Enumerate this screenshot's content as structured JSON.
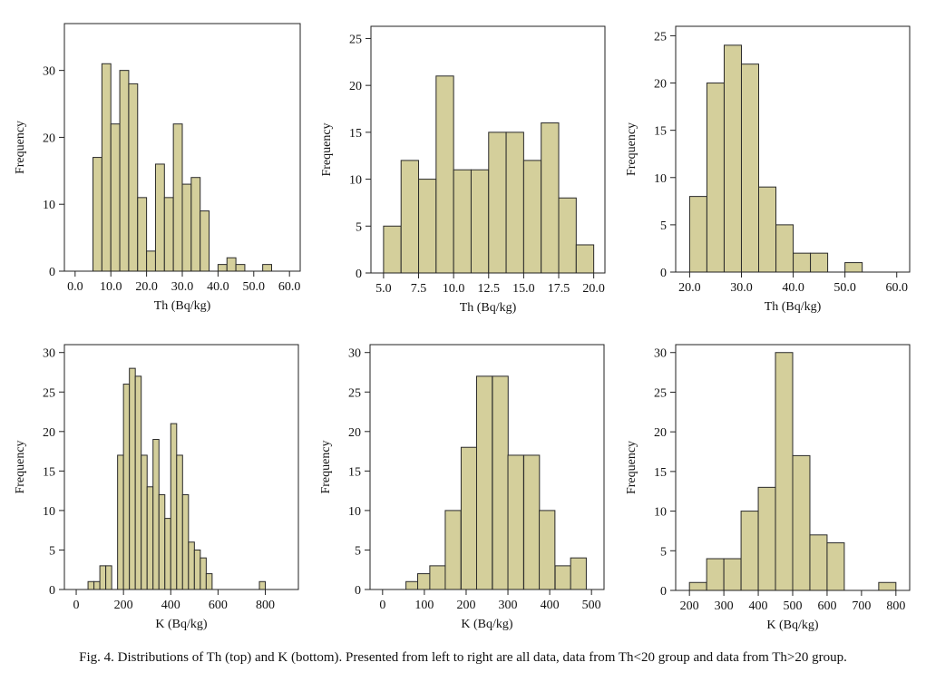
{
  "figure": {
    "caption": "Fig. 4.  Distributions of Th (top) and K (bottom). Presented from left to right are all data, data from Th<20 group and data from Th>20 group.",
    "bar_color": "#d4cf9b",
    "edge_color": "#2a2a2a"
  },
  "chart_data": [
    {
      "type": "bar",
      "panel": "top-left",
      "xlabel": "Th (Bq/kg)",
      "ylabel": "Frequency",
      "xlim": [
        -3,
        63
      ],
      "ylim": [
        0,
        37
      ],
      "xticks": [
        0,
        10,
        20,
        30,
        40,
        50,
        60
      ],
      "xtick_labels": [
        "0.0",
        "10.0",
        "20.0",
        "30.0",
        "40.0",
        "50.0",
        "60.0"
      ],
      "yticks": [
        0,
        10,
        20,
        30
      ],
      "bin_width": 2.5,
      "bins": [
        {
          "x0": 5,
          "count": 17
        },
        {
          "x0": 7.5,
          "count": 31
        },
        {
          "x0": 10,
          "count": 22
        },
        {
          "x0": 12.5,
          "count": 30
        },
        {
          "x0": 15,
          "count": 28
        },
        {
          "x0": 17.5,
          "count": 11
        },
        {
          "x0": 20,
          "count": 3
        },
        {
          "x0": 22.5,
          "count": 16
        },
        {
          "x0": 25,
          "count": 11
        },
        {
          "x0": 27.5,
          "count": 22
        },
        {
          "x0": 30,
          "count": 13
        },
        {
          "x0": 32.5,
          "count": 14
        },
        {
          "x0": 35,
          "count": 9
        },
        {
          "x0": 40,
          "count": 1
        },
        {
          "x0": 42.5,
          "count": 2
        },
        {
          "x0": 45,
          "count": 1
        },
        {
          "x0": 52.5,
          "count": 1
        }
      ]
    },
    {
      "type": "bar",
      "panel": "top-middle",
      "xlabel": "Th (Bq/kg)",
      "ylabel": "Frequency",
      "xlim": [
        4.1,
        20.8
      ],
      "ylim": [
        0,
        26.3
      ],
      "xticks": [
        5,
        7.5,
        10,
        12.5,
        15,
        17.5,
        20
      ],
      "xtick_labels": [
        "5.0",
        "7.5",
        "10.0",
        "12.5",
        "15.0",
        "17.5",
        "20.0"
      ],
      "yticks": [
        0,
        5,
        10,
        15,
        20,
        25
      ],
      "bin_width": 1.25,
      "bins": [
        {
          "x0": 5,
          "count": 5
        },
        {
          "x0": 6.25,
          "count": 12
        },
        {
          "x0": 7.5,
          "count": 10
        },
        {
          "x0": 8.75,
          "count": 21
        },
        {
          "x0": 10,
          "count": 11
        },
        {
          "x0": 11.25,
          "count": 11
        },
        {
          "x0": 12.5,
          "count": 15
        },
        {
          "x0": 13.75,
          "count": 15
        },
        {
          "x0": 15,
          "count": 12
        },
        {
          "x0": 16.25,
          "count": 16
        },
        {
          "x0": 17.5,
          "count": 8
        },
        {
          "x0": 18.75,
          "count": 3
        }
      ]
    },
    {
      "type": "bar",
      "panel": "top-right",
      "xlabel": "Th (Bq/kg)",
      "ylabel": "Frequency",
      "xlim": [
        17.3,
        62.5
      ],
      "ylim": [
        0,
        26
      ],
      "xticks": [
        20,
        30,
        40,
        50,
        60
      ],
      "xtick_labels": [
        "20.0",
        "30.0",
        "40.0",
        "50.0",
        "60.0"
      ],
      "yticks": [
        0,
        5,
        10,
        15,
        20,
        25
      ],
      "bin_width": 3.33,
      "bins": [
        {
          "x0": 20.0,
          "count": 8
        },
        {
          "x0": 23.33,
          "count": 20
        },
        {
          "x0": 26.67,
          "count": 24
        },
        {
          "x0": 30.0,
          "count": 22
        },
        {
          "x0": 33.33,
          "count": 9
        },
        {
          "x0": 36.67,
          "count": 5
        },
        {
          "x0": 40.0,
          "count": 2
        },
        {
          "x0": 43.33,
          "count": 2
        },
        {
          "x0": 50.0,
          "count": 1
        }
      ]
    },
    {
      "type": "bar",
      "panel": "bottom-left",
      "xlabel": "K (Bq/kg)",
      "ylabel": "Frequency",
      "xlim": [
        -50,
        940
      ],
      "ylim": [
        0,
        31
      ],
      "xticks": [
        0,
        200,
        400,
        600,
        800
      ],
      "xtick_labels": [
        "0",
        "200",
        "400",
        "600",
        "800"
      ],
      "yticks": [
        0,
        5,
        10,
        15,
        20,
        25,
        30
      ],
      "bin_width": 25,
      "bins": [
        {
          "x0": 50,
          "count": 1
        },
        {
          "x0": 75,
          "count": 1
        },
        {
          "x0": 100,
          "count": 3
        },
        {
          "x0": 125,
          "count": 3
        },
        {
          "x0": 175,
          "count": 17
        },
        {
          "x0": 200,
          "count": 26
        },
        {
          "x0": 225,
          "count": 28
        },
        {
          "x0": 250,
          "count": 27
        },
        {
          "x0": 275,
          "count": 17
        },
        {
          "x0": 300,
          "count": 13
        },
        {
          "x0": 325,
          "count": 19
        },
        {
          "x0": 350,
          "count": 12
        },
        {
          "x0": 375,
          "count": 9
        },
        {
          "x0": 400,
          "count": 21
        },
        {
          "x0": 425,
          "count": 17
        },
        {
          "x0": 450,
          "count": 12
        },
        {
          "x0": 475,
          "count": 6
        },
        {
          "x0": 500,
          "count": 5
        },
        {
          "x0": 525,
          "count": 4
        },
        {
          "x0": 550,
          "count": 2
        },
        {
          "x0": 775,
          "count": 1
        }
      ]
    },
    {
      "type": "bar",
      "panel": "bottom-middle",
      "xlabel": "K (Bq/kg)",
      "ylabel": "Frequency",
      "xlim": [
        -30,
        530
      ],
      "ylim": [
        0,
        31
      ],
      "xticks": [
        0,
        100,
        200,
        300,
        400,
        500
      ],
      "xtick_labels": [
        "0",
        "100",
        "200",
        "300",
        "400",
        "500"
      ],
      "yticks": [
        0,
        5,
        10,
        15,
        20,
        25,
        30
      ],
      "bin_width": 37.5,
      "bins": [
        {
          "x0": 56,
          "count": 1
        },
        {
          "x0": 84,
          "count": 2
        },
        {
          "x0": 113,
          "count": 3
        },
        {
          "x0": 150,
          "count": 10
        },
        {
          "x0": 188,
          "count": 18
        },
        {
          "x0": 225,
          "count": 27
        },
        {
          "x0": 263,
          "count": 27
        },
        {
          "x0": 300,
          "count": 17
        },
        {
          "x0": 338,
          "count": 17
        },
        {
          "x0": 375,
          "count": 10
        },
        {
          "x0": 413,
          "count": 3
        },
        {
          "x0": 450,
          "count": 4
        }
      ]
    },
    {
      "type": "bar",
      "panel": "bottom-right",
      "xlabel": "K (Bq/kg)",
      "ylabel": "Frequency",
      "xlim": [
        160,
        840
      ],
      "ylim": [
        0,
        31
      ],
      "xticks": [
        200,
        300,
        400,
        500,
        600,
        700,
        800
      ],
      "xtick_labels": [
        "200",
        "300",
        "400",
        "500",
        "600",
        "700",
        "800"
      ],
      "yticks": [
        0,
        5,
        10,
        15,
        20,
        25,
        30
      ],
      "bin_width": 50,
      "bins": [
        {
          "x0": 200,
          "count": 1
        },
        {
          "x0": 250,
          "count": 4
        },
        {
          "x0": 300,
          "count": 4
        },
        {
          "x0": 350,
          "count": 10
        },
        {
          "x0": 400,
          "count": 13
        },
        {
          "x0": 450,
          "count": 30
        },
        {
          "x0": 500,
          "count": 17
        },
        {
          "x0": 550,
          "count": 7
        },
        {
          "x0": 600,
          "count": 6
        },
        {
          "x0": 750,
          "count": 1
        }
      ]
    }
  ]
}
